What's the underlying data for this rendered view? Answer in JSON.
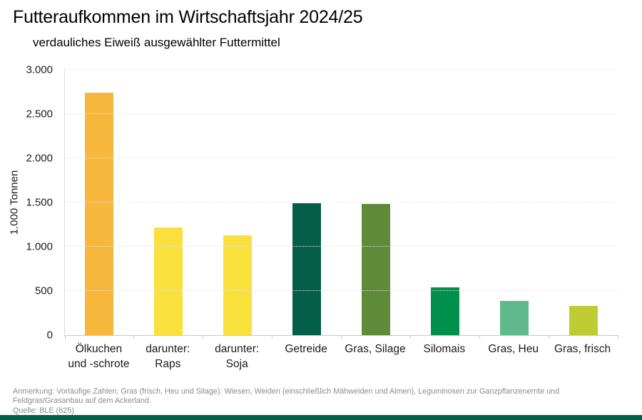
{
  "chart_data": {
    "type": "bar",
    "title": "Futteraufkommen im Wirtschaftsjahr 2024/25",
    "subtitle": "verdauliches Eiweiß ausgewählter Futtermittel",
    "ylabel": "1.000 Tonnen",
    "ylim": [
      0,
      3000
    ],
    "ytick_step": 500,
    "ytick_labels": [
      "0",
      "500",
      "1.000",
      "1.500",
      "2.000",
      "2.500",
      "3.000"
    ],
    "grid": "horizontal-dotted",
    "legend": "none",
    "categories": [
      "Ölkuchen\nund -schrote",
      "darunter:\nRaps",
      "darunter:\nSoja",
      "Getreide",
      "Gras, Silage",
      "Silomais",
      "Gras, Heu",
      "Gras, frisch"
    ],
    "values": [
      2740,
      1220,
      1130,
      1490,
      1480,
      540,
      390,
      330
    ],
    "colors": [
      "#f6b73c",
      "#f9e03c",
      "#f9e03c",
      "#045e48",
      "#5e8a39",
      "#008f4c",
      "#5fb98b",
      "#bfcb32"
    ]
  },
  "footer": {
    "annotation": "Anmerkung: Vorläufige Zahlen; Gras (frisch, Heu und Silage): Wiesen, Weiden (einschließlich Mähweiden und Almen), Leguminosen zur Ganzpflanzenernte und Feldgras/Grasanbau auf dem Ackerland.",
    "source": "Quelle: BLE (625)"
  },
  "theme": {
    "brand_bar_color": "#045e48",
    "baseline_color": "#c8c8c8",
    "gridline_color": "#e4e4e4"
  }
}
